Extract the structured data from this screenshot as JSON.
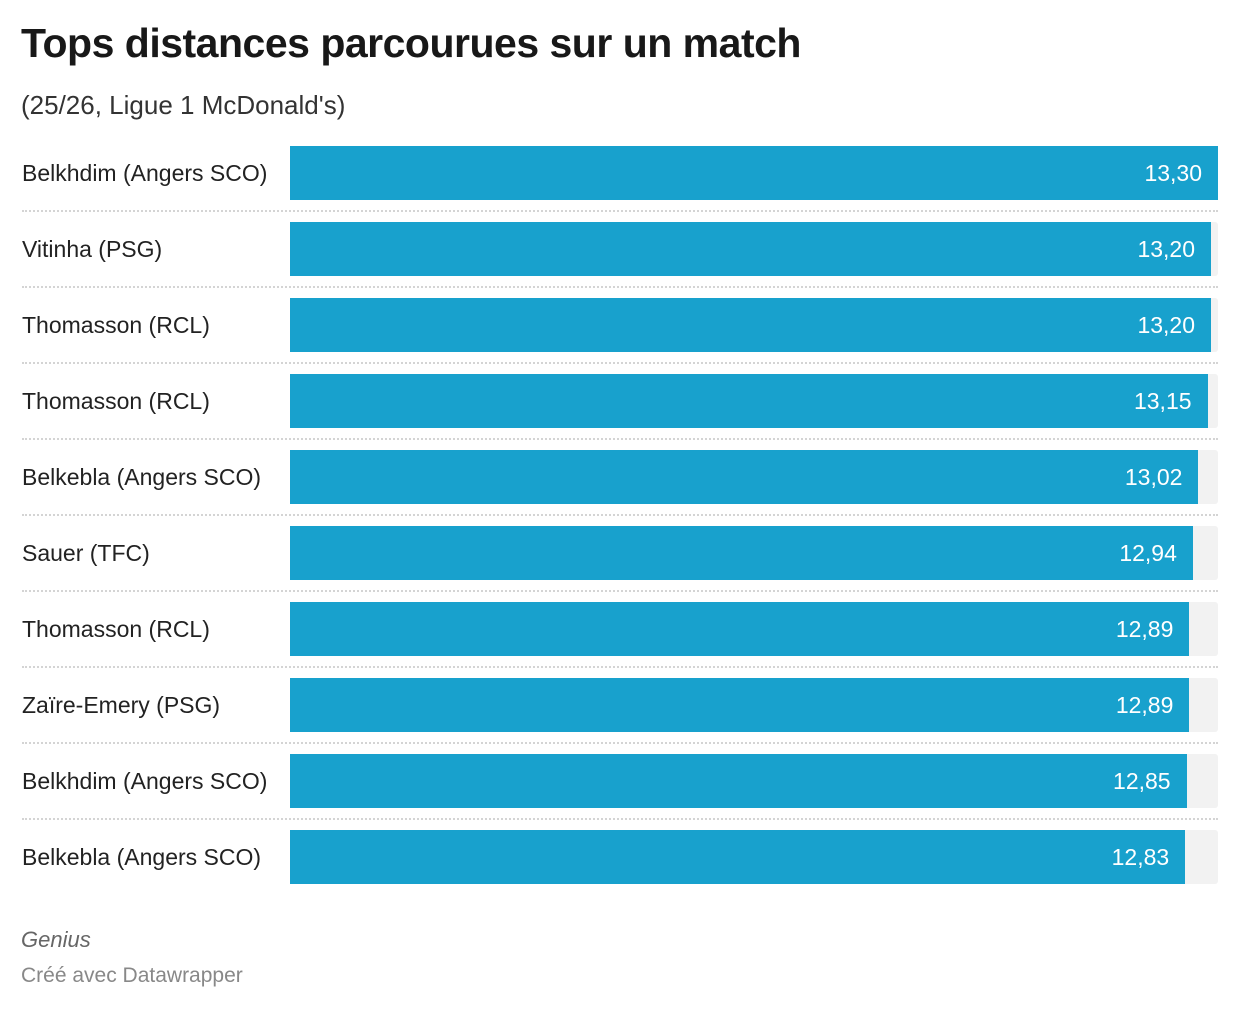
{
  "title": "Tops distances parcourues sur un match",
  "subtitle": "(25/26, Ligue 1 McDonald's)",
  "source": "Genius",
  "credit": "Créé avec Datawrapper",
  "chart_data": {
    "type": "bar",
    "orientation": "horizontal",
    "categories": [
      "Belkhdim (Angers SCO)",
      "Vitinha (PSG)",
      "Thomasson (RCL)",
      "Thomasson (RCL)",
      "Belkebla (Angers SCO)",
      "Sauer (TFC)",
      "Thomasson (RCL)",
      "Zaïre-Emery (PSG)",
      "Belkhdim (Angers SCO)",
      "Belkebla (Angers SCO)"
    ],
    "values": [
      13.3,
      13.2,
      13.2,
      13.15,
      13.02,
      12.94,
      12.89,
      12.89,
      12.85,
      12.83
    ],
    "value_labels": [
      "13,30",
      "13,20",
      "13,20",
      "13,15",
      "13,02",
      "12,94",
      "12,89",
      "12,89",
      "12,85",
      "12,83"
    ],
    "xlim": [
      0,
      13.3
    ],
    "bar_color": "#18a1cd",
    "track_color": "#f2f2f2",
    "grid": false
  }
}
